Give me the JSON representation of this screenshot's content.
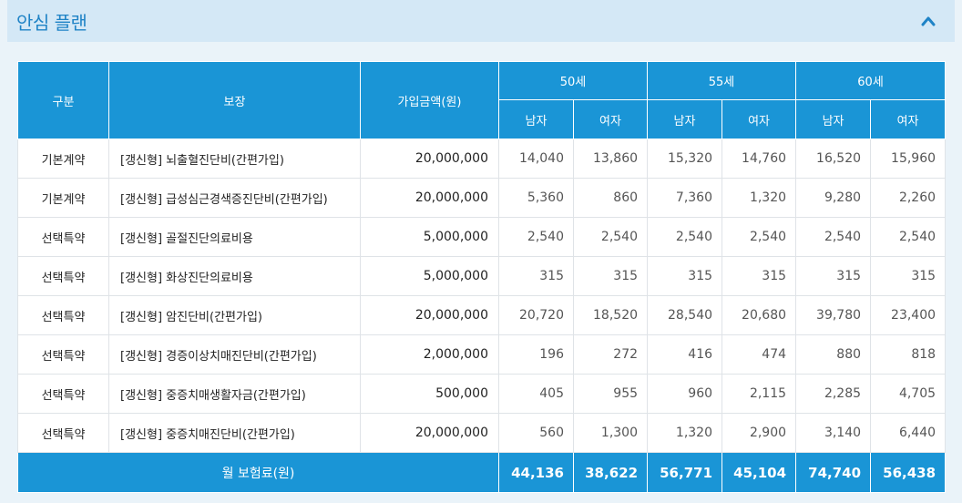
{
  "header": {
    "title": "안심 플랜"
  },
  "table": {
    "col_type": "구분",
    "col_coverage": "보장",
    "col_amount": "가입금액(원)",
    "age_groups": [
      "50세",
      "55세",
      "60세"
    ],
    "genders": [
      "남자",
      "여자",
      "남자",
      "여자",
      "남자",
      "여자"
    ],
    "rows": [
      {
        "type": "기본계약",
        "coverage": "[갱신형] 뇌출혈진단비(간편가입)",
        "amount": "20,000,000",
        "values": [
          "14,040",
          "13,860",
          "15,320",
          "14,760",
          "16,520",
          "15,960"
        ]
      },
      {
        "type": "기본계약",
        "coverage": "[갱신형] 급성심근경색증진단비(간편가입)",
        "amount": "20,000,000",
        "values": [
          "5,360",
          "860",
          "7,360",
          "1,320",
          "9,280",
          "2,260"
        ]
      },
      {
        "type": "선택특약",
        "coverage": "[갱신형] 골절진단의료비용",
        "amount": "5,000,000",
        "values": [
          "2,540",
          "2,540",
          "2,540",
          "2,540",
          "2,540",
          "2,540"
        ]
      },
      {
        "type": "선택특약",
        "coverage": "[갱신형] 화상진단의료비용",
        "amount": "5,000,000",
        "values": [
          "315",
          "315",
          "315",
          "315",
          "315",
          "315"
        ]
      },
      {
        "type": "선택특약",
        "coverage": "[갱신형] 암진단비(간편가입)",
        "amount": "20,000,000",
        "values": [
          "20,720",
          "18,520",
          "28,540",
          "20,680",
          "39,780",
          "23,400"
        ]
      },
      {
        "type": "선택특약",
        "coverage": "[갱신형] 경증이상치매진단비(간편가입)",
        "amount": "2,000,000",
        "values": [
          "196",
          "272",
          "416",
          "474",
          "880",
          "818"
        ]
      },
      {
        "type": "선택특약",
        "coverage": "[갱신형] 중증치매생활자금(간편가입)",
        "amount": "500,000",
        "values": [
          "405",
          "955",
          "960",
          "2,115",
          "2,285",
          "4,705"
        ]
      },
      {
        "type": "선택특약",
        "coverage": "[갱신형] 중증치매진단비(간편가입)",
        "amount": "20,000,000",
        "values": [
          "560",
          "1,300",
          "1,320",
          "2,900",
          "3,140",
          "6,440"
        ]
      }
    ],
    "total": {
      "label": "월 보험료(원)",
      "values": [
        "44,136",
        "38,622",
        "56,771",
        "45,104",
        "74,740",
        "56,438"
      ]
    }
  },
  "colors": {
    "header_bg": "#1a95d6",
    "title": "#1f83c6",
    "panel_bg": "#d4e8f6"
  },
  "icons": {
    "collapse": "chevron-up-icon"
  }
}
